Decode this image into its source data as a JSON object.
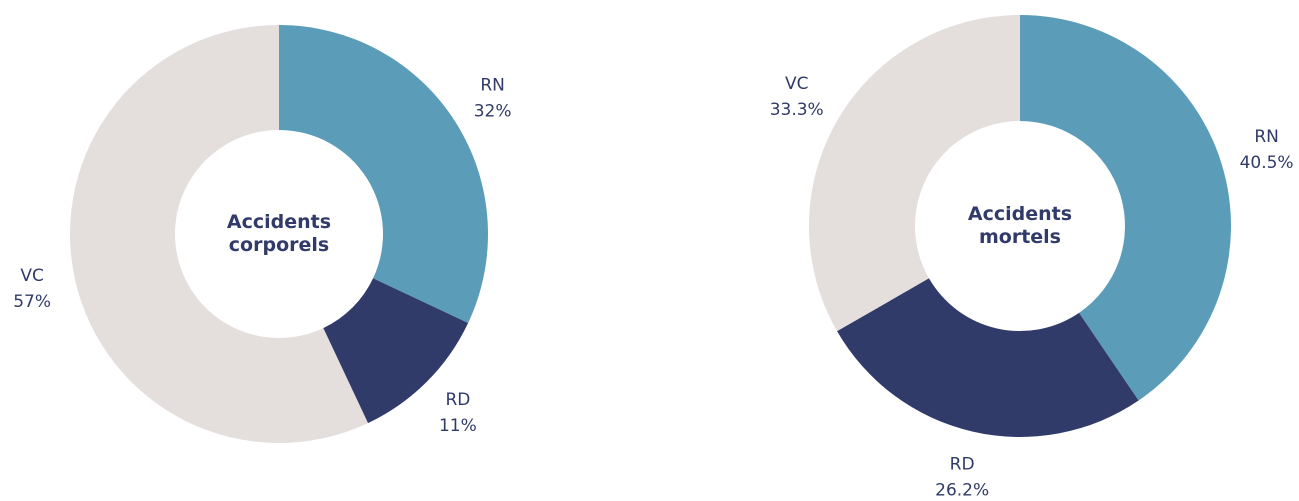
{
  "chart_data": [
    {
      "type": "donut",
      "title": "Accidents corporels",
      "categories": [
        "RN",
        "RD",
        "VC"
      ],
      "values": [
        32,
        11,
        57
      ],
      "value_labels": [
        "32%",
        "11%",
        "57%"
      ],
      "colors": [
        "#5b9db8",
        "#313b69",
        "#e4dedc"
      ]
    },
    {
      "type": "donut",
      "title": "Accidents mortels",
      "categories": [
        "RN",
        "RD",
        "VC"
      ],
      "values": [
        40.5,
        26.2,
        33.3
      ],
      "value_labels": [
        "40.5%",
        "26.2%",
        "33.3%"
      ],
      "colors": [
        "#5b9db8",
        "#313b69",
        "#e4dedc"
      ]
    }
  ]
}
